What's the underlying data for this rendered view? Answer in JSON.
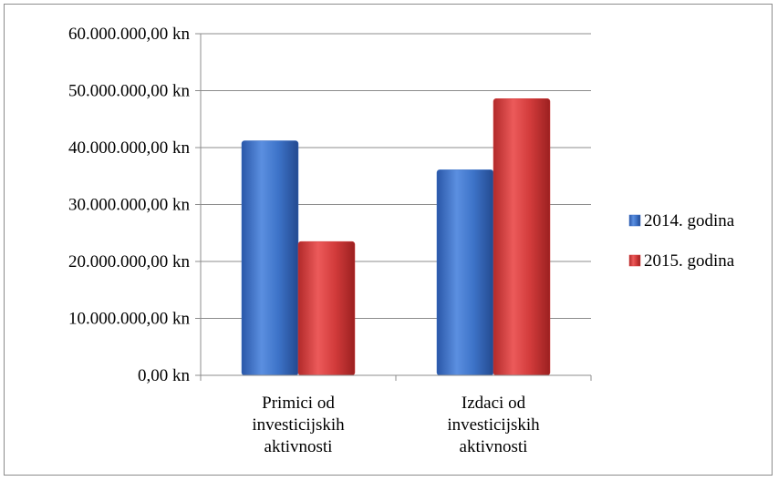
{
  "chart_data": {
    "type": "bar",
    "categories": [
      [
        "Primici od",
        "investicijskih",
        "aktivnosti"
      ],
      [
        "Izdaci od",
        "investicijskih",
        "aktivnosti"
      ]
    ],
    "series": [
      {
        "name": "2014. godina",
        "color": "#3a6fc4",
        "values": [
          41200000,
          36100000
        ]
      },
      {
        "name": "2015. godina",
        "color": "#d23b3b",
        "values": [
          23500000,
          48600000
        ]
      }
    ],
    "ylim": [
      0,
      60000000
    ],
    "yticks": [
      0,
      10000000,
      20000000,
      30000000,
      40000000,
      50000000,
      60000000
    ],
    "ytick_labels": [
      "0,00 kn",
      "10.000.000,00 kn",
      "20.000.000,00 kn",
      "30.000.000,00 kn",
      "40.000.000,00 kn",
      "50.000.000,00 kn",
      "60.000.000,00 kn"
    ],
    "grid": true,
    "legend_position": "right"
  }
}
